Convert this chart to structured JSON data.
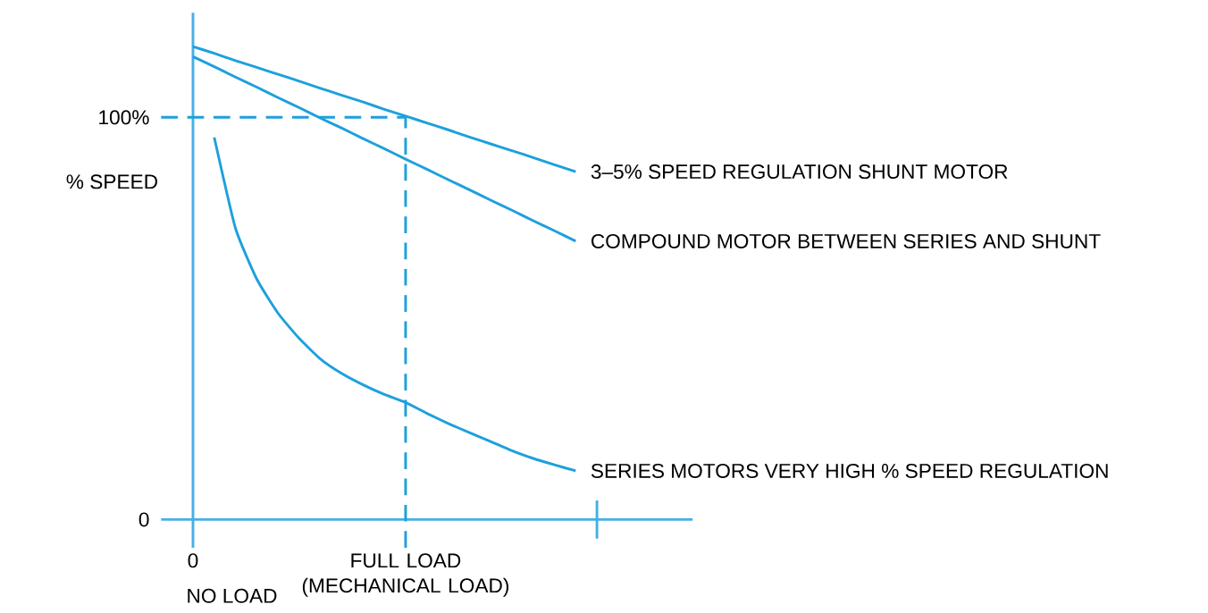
{
  "chart_data": {
    "type": "line",
    "ylabel": "% SPEED",
    "annotations": [
      "NO LOAD"
    ],
    "categories": [
      null,
      "0",
      null,
      null,
      null,
      null,
      null,
      null,
      null,
      null,
      null,
      "FULL LOAD (MECHANICAL LOAD)",
      null,
      null,
      null,
      null,
      null,
      null,
      null,
      null,
      null,
      null,
      null,
      null,
      null
    ],
    "ylim": [
      -7,
      126
    ],
    "yticks": [
      {
        "value": 0,
        "label": "0"
      },
      {
        "value": 100,
        "label": "100%"
      }
    ],
    "marker": "none",
    "line_style": "solid",
    "ref_lines": [
      {
        "axis": "y",
        "value": 100,
        "color": "#1ea0dc",
        "line_style": "dashed"
      },
      {
        "axis": "x",
        "value": "FULL LOAD (MECHANICAL LOAD)",
        "color": "#1ea0dc",
        "line_style": "dashed"
      }
    ],
    "series": [
      {
        "name": "3–5% SPEED REGULATION SHUNT MOTOR",
        "color": "#1ea0dc",
        "values": [
          null,
          117.6,
          115.9,
          114.1,
          112.4,
          110.7,
          109.0,
          107.2,
          105.5,
          103.8,
          102.0,
          100.3,
          98.6,
          96.9,
          95.1,
          93.4,
          91.7,
          90.0,
          88.2,
          86.5,
          null,
          null,
          null,
          null,
          null
        ]
      },
      {
        "name": "COMPOUND MOTOR BETWEEN SERIES AND SHUNT",
        "color": "#1ea0dc",
        "values": [
          null,
          115.1,
          112.6,
          110.0,
          107.5,
          104.9,
          102.4,
          99.8,
          97.3,
          94.7,
          92.2,
          89.6,
          87.1,
          84.5,
          82.0,
          79.4,
          76.9,
          74.3,
          71.8,
          69.2,
          null,
          null,
          null,
          null,
          null
        ]
      },
      {
        "name": "SERIES MOTORS VERY HIGH % SPEED REGULATION",
        "color": "#1ea0dc",
        "values": [
          null,
          null,
          95,
          72.4,
          59.8,
          51.3,
          45.0,
          39.9,
          36.3,
          33.5,
          31.1,
          29.1,
          26.4,
          23.9,
          21.6,
          19.4,
          17.1,
          15.2,
          13.6,
          12.1,
          null,
          null,
          null,
          null,
          null
        ]
      }
    ]
  }
}
